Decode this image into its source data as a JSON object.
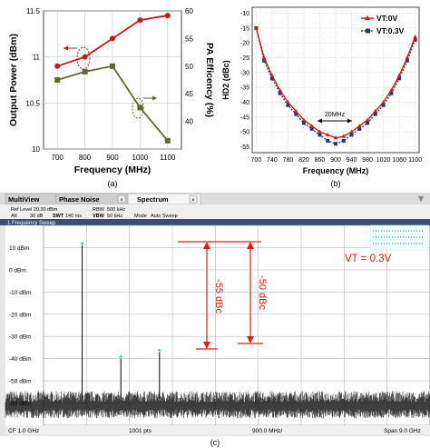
{
  "panel_a": {
    "caption": "(a)",
    "xlabel": "Frequency (MHz)",
    "ylabel_left": "Output Power (dBm)",
    "ylabel_right": "PA Efficency (%)",
    "x_ticks": [
      "700",
      "800",
      "900",
      "1000",
      "1100"
    ],
    "y_left_ticks": [
      "10",
      "10.5",
      "11",
      "11.5"
    ],
    "y_right_ticks": [
      "40",
      "45",
      "50",
      "55",
      "60"
    ],
    "colors": {
      "power": "#c0181d",
      "efficiency": "#5d6e2c"
    }
  },
  "panel_b": {
    "caption": "(b)",
    "xlabel": "Frequency (MHz)",
    "ylabel": "HD2 (dBc)",
    "x_ticks": [
      "700",
      "740",
      "780",
      "820",
      "860",
      "900",
      "940",
      "980",
      "1020",
      "1060",
      "1100"
    ],
    "y_ticks": [
      "-10",
      "-15",
      "-20",
      "-25",
      "-30",
      "-35",
      "-40",
      "-45",
      "-50",
      "-55"
    ],
    "legend": [
      "VT:0V",
      "VT:0.3V"
    ],
    "annotation": "20MHz",
    "colors": {
      "vt0": "#d21a1a",
      "vt03": "#1c3a73"
    }
  },
  "panel_c": {
    "caption": "(c)",
    "tabs": [
      "MultiView",
      "Phase Noise",
      "Spectrum"
    ],
    "settings_line1": "Ref Level 20.30 dBm",
    "settings_rbw": "RBW",
    "settings_rbw_val": "500 kHz",
    "settings_att": "Att",
    "settings_att_val": "30 dB",
    "settings_swt": "SWT",
    "settings_swt_val": "140 ms",
    "settings_vbw": "VBW",
    "settings_vbw_val": "50 kHz",
    "settings_mode": "Mode",
    "settings_mode_val": "Auto Sweep",
    "sweep_title": "1 Frequency Sweep",
    "y_ticks": [
      "10 dBm",
      "0 dBm",
      "-10 dBm",
      "-20 dBm",
      "-30 dBm",
      "-40 dBm",
      "-50 dBm",
      "-60 dBm"
    ],
    "footer_left": "CF 1.0 GHz",
    "footer_pts": "1001 pts",
    "footer_mid": "900.0 MHz/",
    "footer_right": "Span 9.0 GHz",
    "vt_label": "VT = 0.3V",
    "dbc1": "-55 dBc",
    "dbc2": "-50 dBc",
    "colors": {
      "annotation": "#e01b1b",
      "trace": "#000000"
    }
  },
  "chart_data": [
    {
      "type": "line",
      "x": [
        700,
        800,
        900,
        1000,
        1100
      ],
      "series": [
        {
          "name": "Output Power (dBm)",
          "axis": "left",
          "values": [
            10.9,
            11.0,
            11.2,
            11.4,
            11.45
          ]
        },
        {
          "name": "PA Efficency (%)",
          "axis": "right",
          "values": [
            47.5,
            49.0,
            50.0,
            42.5,
            36.5
          ]
        }
      ],
      "xlabel": "Frequency (MHz)",
      "ylabel": "Output Power (dBm)",
      "y2label": "PA Efficency (%)",
      "xlim": [
        650,
        1150
      ],
      "ylim": [
        10,
        11.5
      ],
      "y2lim": [
        35,
        60
      ],
      "grid": true
    },
    {
      "type": "line",
      "x": [
        700,
        720,
        740,
        760,
        780,
        800,
        820,
        840,
        860,
        880,
        900,
        920,
        940,
        960,
        980,
        1000,
        1020,
        1040,
        1060,
        1080,
        1100
      ],
      "series": [
        {
          "name": "VT:0V",
          "values": [
            -15,
            -25,
            -31,
            -36,
            -40,
            -43,
            -46,
            -48,
            -50,
            -51,
            -52,
            -51.5,
            -50,
            -48,
            -46,
            -43,
            -40,
            -36,
            -31,
            -25,
            -18
          ]
        },
        {
          "name": "VT:0.3V",
          "values": [
            -15,
            -26,
            -32,
            -37,
            -41,
            -44,
            -47,
            -49,
            -51,
            -53,
            -54,
            -53,
            -51,
            -49,
            -47,
            -44,
            -41,
            -37,
            -32,
            -26,
            -19
          ]
        }
      ],
      "xlabel": "Frequency (MHz)",
      "ylabel": "HD2 (dBc)",
      "xlim": [
        690,
        1110
      ],
      "ylim": [
        -57,
        -8
      ],
      "legend": "top-right",
      "grid": true
    },
    {
      "type": "line",
      "x_range_ghz": [
        0,
        9
      ],
      "y_range_dbm": [
        -70,
        20
      ],
      "peaks": [
        {
          "x_ghz": 0.9,
          "y_dbm": 11
        },
        {
          "x_ghz": 1.8,
          "y_dbm": -40
        },
        {
          "x_ghz": 2.7,
          "y_dbm": -37
        }
      ],
      "noise_floor_dbm": -62,
      "grid": true
    }
  ]
}
